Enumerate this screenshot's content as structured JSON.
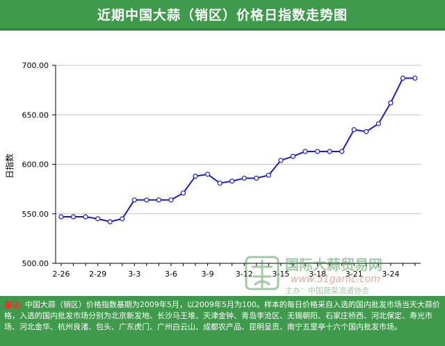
{
  "header": {
    "title": "近期中国大蒜（销区）价格日指数走势图"
  },
  "watermark": {
    "name": "国际大蒜贸易网",
    "url": "www.51garlic.com",
    "sponsor": "主办：中国蔬菜流通协会"
  },
  "footer": {
    "note_label": "备注:",
    "note_text": "中国大蒜（销区）价格指数基期为2009年5月，以2009年5月为100。样本的每日价格采自入选的国内批发市场当天大蒜价格，入选的国内批发市场分别为北京新发地、长沙马王堆、天津金钟、青岛李沧区、无锡朝阳、石家庄桥西、河北保定、寿光市场、河北金华、杭州良渚、包头、广东虎门、广州白云山、成都农产品、昆明呈贡、南宁五里亭十六个国内批发市场。"
  },
  "chart_data": {
    "type": "line",
    "title": "近期中国大蒜（销区）价格日指数走势图",
    "ylabel": "日指数",
    "xlabel": "",
    "ylim": [
      500,
      700
    ],
    "yticks": [
      "700.00",
      "650.00",
      "600.00",
      "550.00",
      "500.00"
    ],
    "xtick_labels": [
      "2-26",
      "2-29",
      "3-3",
      "3-6",
      "3-9",
      "3-12",
      "3-15",
      "3-18",
      "3-21",
      "3-24"
    ],
    "grid": "horizontal",
    "colors": {
      "line": "#1a1acc",
      "marker_fill": "#ffffff",
      "grid": "#c0c0c0",
      "header_bg": "#3f9a4c"
    },
    "series": [
      {
        "values": [
          547,
          547,
          547,
          545,
          542,
          545,
          564,
          564,
          564,
          564,
          571,
          588,
          590,
          581,
          583,
          586,
          586,
          589,
          604,
          608,
          613,
          613,
          613,
          613,
          635,
          633,
          641,
          662,
          687,
          687
        ]
      }
    ]
  }
}
